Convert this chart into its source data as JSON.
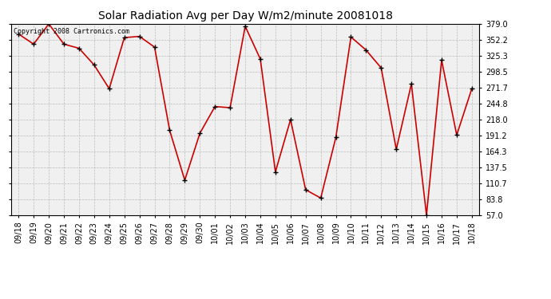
{
  "title": "Solar Radiation Avg per Day W/m2/minute 20081018",
  "copyright": "Copyright 2008 Cartronics.com",
  "labels": [
    "09/18",
    "09/19",
    "09/20",
    "09/21",
    "09/22",
    "09/23",
    "09/24",
    "09/25",
    "09/26",
    "09/27",
    "09/28",
    "09/29",
    "09/30",
    "10/01",
    "10/02",
    "10/03",
    "10/04",
    "10/05",
    "10/06",
    "10/07",
    "10/08",
    "10/09",
    "10/10",
    "10/11",
    "10/12",
    "10/13",
    "10/14",
    "10/15",
    "10/16",
    "10/17",
    "10/18"
  ],
  "values": [
    362.0,
    345.0,
    379.0,
    345.0,
    338.0,
    310.0,
    270.0,
    356.0,
    358.0,
    340.0,
    200.0,
    116.0,
    195.0,
    240.0,
    238.0,
    375.0,
    320.0,
    130.0,
    218.0,
    100.0,
    86.0,
    188.0,
    357.0,
    335.0,
    305.0,
    168.0,
    278.0,
    57.0,
    318.0,
    192.0,
    270.0
  ],
  "ymin": 57.0,
  "ymax": 379.0,
  "yticks": [
    57.0,
    83.8,
    110.7,
    137.5,
    164.3,
    191.2,
    218.0,
    244.8,
    271.7,
    298.5,
    325.3,
    352.2,
    379.0
  ],
  "line_color": "#cc0000",
  "marker_color": "#000000",
  "bg_color": "#f0f0f0",
  "grid_color": "#bbbbbb",
  "title_fontsize": 10,
  "copyright_fontsize": 6,
  "tick_fontsize": 7,
  "ytick_fontsize": 7
}
